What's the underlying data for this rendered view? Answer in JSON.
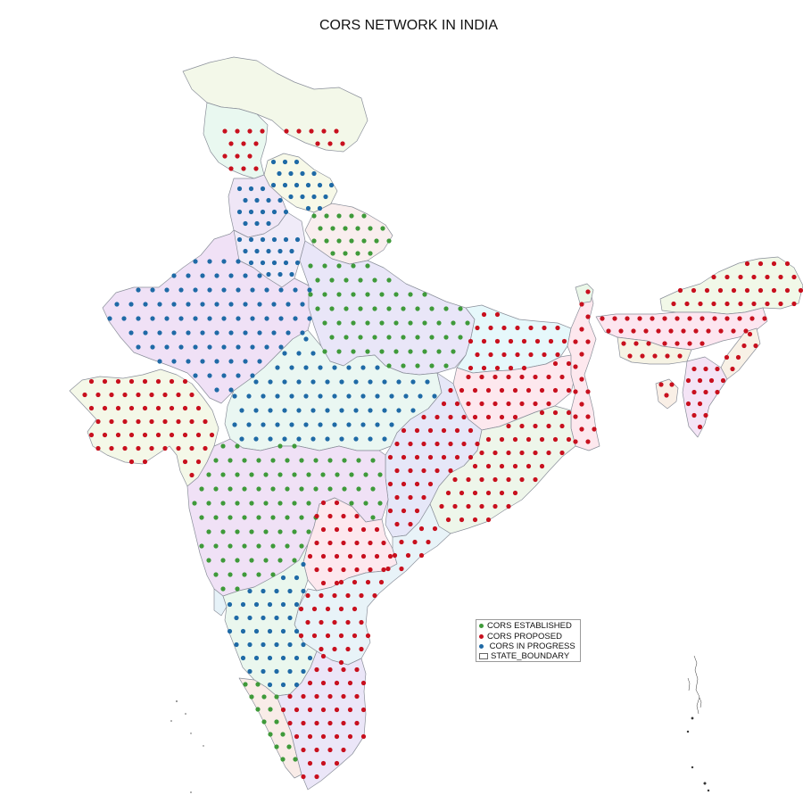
{
  "title": "CORS NETWORK IN INDIA",
  "legend": {
    "items": [
      {
        "key": "established",
        "label": "CORS ESTABLISHED",
        "color": "#3f9a3a"
      },
      {
        "key": "proposed",
        "label": "CORS PROPOSED",
        "color": "#c8101e"
      },
      {
        "key": "in_progress",
        "label": " CORS IN PROGRESS",
        "color": "#1f6aa6"
      },
      {
        "key": "boundary",
        "label": "STATE_BOUNDARY",
        "color": "#ffffff"
      }
    ]
  },
  "colors": {
    "established": "#3f9a3a",
    "proposed": "#c8101e",
    "in_progress": "#1f6aa6",
    "boundary_stroke": "#8a8f9a"
  }
}
